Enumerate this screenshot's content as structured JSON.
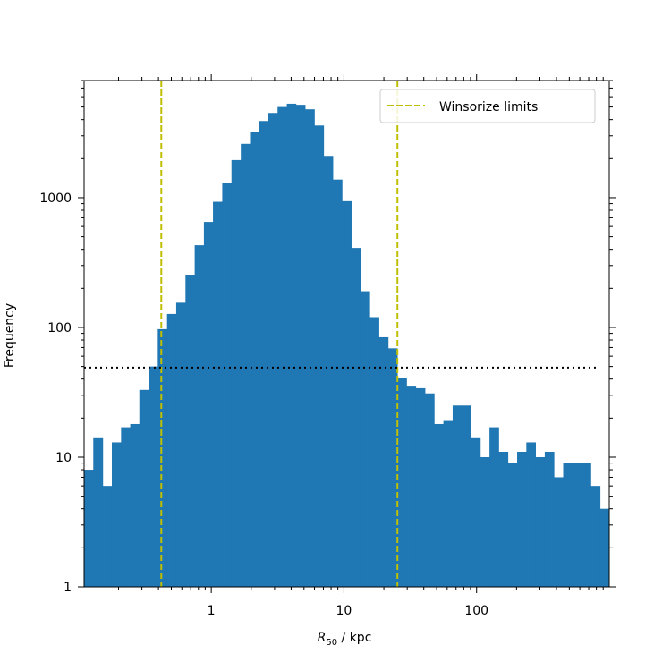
{
  "chart_data": {
    "type": "bar",
    "subtype": "histogram",
    "xscale": "log",
    "yscale": "log",
    "xlim": [
      0.11,
      1000
    ],
    "ylim": [
      1,
      8000
    ],
    "xlabel": {
      "symbol": "R",
      "subscript": "50",
      "unit": " / kpc"
    },
    "ylabel": "Frequency",
    "x_ticks": [
      {
        "value": 1,
        "label": "1"
      },
      {
        "value": 10,
        "label": "10"
      },
      {
        "value": 100,
        "label": "100"
      }
    ],
    "y_ticks": [
      {
        "value": 1,
        "label": "1"
      },
      {
        "value": 10,
        "label": "10"
      },
      {
        "value": 100,
        "label": "100"
      },
      {
        "value": 1000,
        "label": "1000"
      }
    ],
    "bar_color": "#1f77b4",
    "bins": [
      [
        0.11,
        0.129,
        8
      ],
      [
        0.129,
        0.152,
        14
      ],
      [
        0.152,
        0.178,
        6
      ],
      [
        0.178,
        0.209,
        13
      ],
      [
        0.209,
        0.245,
        17
      ],
      [
        0.245,
        0.287,
        18
      ],
      [
        0.287,
        0.337,
        33
      ],
      [
        0.337,
        0.395,
        50
      ],
      [
        0.395,
        0.464,
        97
      ],
      [
        0.464,
        0.544,
        127
      ],
      [
        0.544,
        0.639,
        155
      ],
      [
        0.639,
        0.75,
        255
      ],
      [
        0.75,
        0.88,
        430
      ],
      [
        0.88,
        1.03,
        650
      ],
      [
        1.03,
        1.21,
        930
      ],
      [
        1.21,
        1.42,
        1300
      ],
      [
        1.42,
        1.67,
        1950
      ],
      [
        1.67,
        1.96,
        2600
      ],
      [
        1.96,
        2.3,
        3200
      ],
      [
        2.3,
        2.69,
        3900
      ],
      [
        2.69,
        3.16,
        4500
      ],
      [
        3.16,
        3.71,
        5000
      ],
      [
        3.71,
        4.35,
        5300
      ],
      [
        4.35,
        5.1,
        5200
      ],
      [
        5.1,
        5.99,
        4800
      ],
      [
        5.99,
        7.03,
        3600
      ],
      [
        7.03,
        8.25,
        2100
      ],
      [
        8.25,
        9.68,
        1380
      ],
      [
        9.68,
        11.35,
        940
      ],
      [
        11.35,
        13.33,
        410
      ],
      [
        13.33,
        15.64,
        190
      ],
      [
        15.64,
        18.35,
        120
      ],
      [
        18.35,
        21.53,
        84
      ],
      [
        21.53,
        25.27,
        69
      ],
      [
        25.27,
        29.65,
        41
      ],
      [
        29.65,
        34.79,
        35
      ],
      [
        34.79,
        40.83,
        34
      ],
      [
        40.83,
        47.9,
        31
      ],
      [
        47.9,
        56.2,
        18
      ],
      [
        56.2,
        66.0,
        19
      ],
      [
        66.0,
        77.4,
        25
      ],
      [
        77.4,
        90.8,
        25
      ],
      [
        90.8,
        106.6,
        14
      ],
      [
        106.6,
        125.1,
        10
      ],
      [
        125.1,
        146.8,
        17
      ],
      [
        146.8,
        172.2,
        11
      ],
      [
        172.2,
        202.1,
        9
      ],
      [
        202.1,
        237.1,
        11
      ],
      [
        237.1,
        278.2,
        13
      ],
      [
        278.2,
        326.5,
        10
      ],
      [
        326.5,
        383.1,
        11
      ],
      [
        383.1,
        449.5,
        7
      ],
      [
        449.5,
        527.4,
        9
      ],
      [
        527.4,
        618.9,
        9
      ],
      [
        618.9,
        726.2,
        9
      ],
      [
        726.2,
        852.2,
        6
      ],
      [
        852.2,
        1000,
        4
      ]
    ],
    "winsorize_limits": [
      0.42,
      25.3
    ],
    "threshold_line": {
      "y": 49,
      "style": "dotted",
      "color": "#000000"
    },
    "legend": {
      "position": "top-right",
      "entries": [
        {
          "label": "Winsorize limits",
          "color": "#bfbf00",
          "style": "dashed"
        }
      ]
    }
  }
}
